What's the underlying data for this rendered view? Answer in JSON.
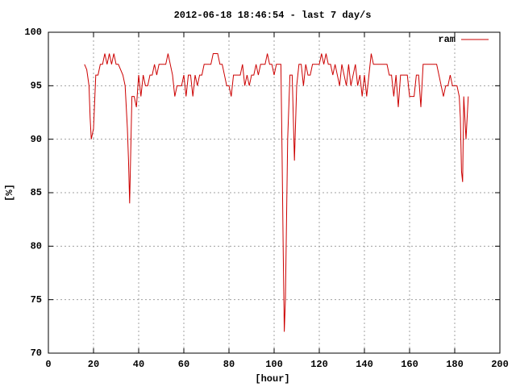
{
  "chart_data": {
    "type": "line",
    "title": "2012-06-18 18:46:54 - last 7 day/s",
    "x_label": "[hour]",
    "y_label": "[%]",
    "x": [
      16,
      17,
      18,
      18.5,
      19,
      20,
      21,
      22,
      23,
      24,
      25,
      26,
      27,
      28,
      29,
      30,
      31,
      32,
      33,
      34,
      35,
      35.5,
      36,
      36.5,
      37,
      38,
      39,
      40,
      41,
      42,
      43,
      44,
      45,
      46,
      47,
      48,
      49,
      50,
      51,
      52,
      53,
      54,
      55,
      56,
      57,
      58,
      59,
      60,
      61,
      62,
      63,
      64,
      65,
      66,
      67,
      68,
      69,
      70,
      71,
      72,
      73,
      74,
      75,
      76,
      77,
      78,
      79,
      80,
      81,
      82,
      83,
      84,
      85,
      86,
      87,
      88,
      89,
      90,
      91,
      92,
      93,
      94,
      95,
      96,
      97,
      98,
      99,
      100,
      101,
      102,
      103,
      103.5,
      104,
      104.5,
      105,
      106,
      107,
      108,
      109,
      110,
      111,
      112,
      113,
      114,
      115,
      116,
      117,
      118,
      119,
      120,
      121,
      122,
      123,
      124,
      125,
      126,
      127,
      128,
      129,
      130,
      131,
      132,
      133,
      134,
      135,
      136,
      137,
      138,
      139,
      140,
      141,
      142,
      143,
      144,
      145,
      146,
      147,
      148,
      149,
      150,
      151,
      152,
      153,
      154,
      155,
      156,
      157,
      158,
      159,
      160,
      161,
      162,
      163,
      164,
      165,
      166,
      167,
      168,
      169,
      170,
      171,
      172,
      173,
      174,
      175,
      176,
      177,
      178,
      179,
      180,
      181,
      182,
      182.5,
      183,
      183.5,
      184,
      185,
      186
    ],
    "series": [
      {
        "name": "ram",
        "color": "#cc0000",
        "values": [
          97,
          96.5,
          95,
          92,
          90,
          91,
          96,
          96,
          97,
          97,
          98,
          97,
          98,
          97,
          98,
          97,
          97,
          96.5,
          96,
          95,
          91,
          88,
          84,
          89,
          94,
          94,
          93,
          96,
          94,
          96,
          95,
          95,
          96,
          96,
          97,
          96,
          97,
          97,
          97,
          97,
          98,
          97,
          96,
          94,
          95,
          95,
          95,
          96,
          94,
          96,
          96,
          94,
          96,
          95,
          96,
          96,
          97,
          97,
          97,
          97,
          98,
          98,
          98,
          97,
          97,
          96,
          95,
          95,
          94,
          96,
          96,
          96,
          96,
          97,
          95,
          96,
          95,
          96,
          96,
          97,
          96,
          97,
          97,
          97,
          98,
          97,
          97,
          96,
          97,
          97,
          97,
          89,
          80,
          72,
          75,
          90,
          96,
          96,
          88,
          95,
          97,
          97,
          95,
          97,
          96,
          96,
          97,
          97,
          97,
          97,
          98,
          97,
          98,
          97,
          97,
          96,
          97,
          96,
          95,
          97,
          96,
          95,
          97,
          95,
          96,
          97,
          95,
          96,
          94,
          96,
          94,
          96,
          98,
          97,
          97,
          97,
          97,
          97,
          97,
          97,
          96,
          96,
          94,
          96,
          93,
          96,
          96,
          96,
          96,
          94,
          94,
          94,
          96,
          96,
          93,
          97,
          97,
          97,
          97,
          97,
          97,
          97,
          96,
          95,
          94,
          95,
          95,
          96,
          95,
          95,
          95,
          94,
          92,
          87,
          86,
          94,
          90,
          94
        ]
      }
    ],
    "xlim": [
      0,
      200
    ],
    "ylim": [
      70,
      100
    ],
    "xticks": [
      0,
      20,
      40,
      60,
      80,
      100,
      120,
      140,
      160,
      180,
      200
    ],
    "yticks": [
      70,
      75,
      80,
      85,
      90,
      95,
      100
    ],
    "grid": true,
    "legend": "top-right"
  }
}
